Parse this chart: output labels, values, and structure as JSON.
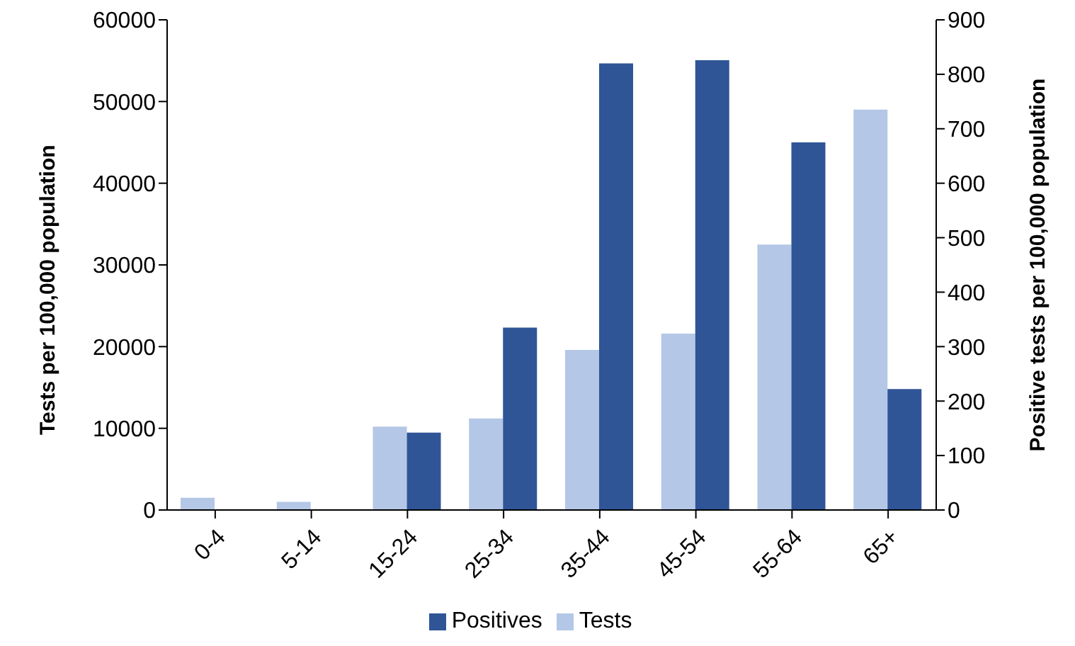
{
  "chart_data": {
    "type": "bar",
    "categories": [
      "0-4",
      "5-14",
      "15-24",
      "25-34",
      "35-44",
      "45-54",
      "55-64",
      "65+"
    ],
    "series": [
      {
        "name": "Tests",
        "color": "#b4c7e7",
        "values": [
          1500,
          1000,
          10200,
          11200,
          19600,
          21600,
          32500,
          49000
        ]
      },
      {
        "name": "Positives",
        "color": "#2f5597",
        "axis": "y2",
        "values": [
          0,
          0,
          142,
          335,
          820,
          826,
          675,
          222
        ]
      }
    ],
    "ylabel": "Tests per 100,000 population",
    "y2label": "Positive tests per 100,000 population",
    "ylim": [
      0,
      60000
    ],
    "yticks": [
      0,
      10000,
      20000,
      30000,
      40000,
      50000,
      60000
    ],
    "y2lim": [
      0,
      900
    ],
    "y2ticks": [
      0,
      100,
      200,
      300,
      400,
      500,
      600,
      700,
      800,
      900
    ],
    "grid": false,
    "legend": "bottom"
  }
}
